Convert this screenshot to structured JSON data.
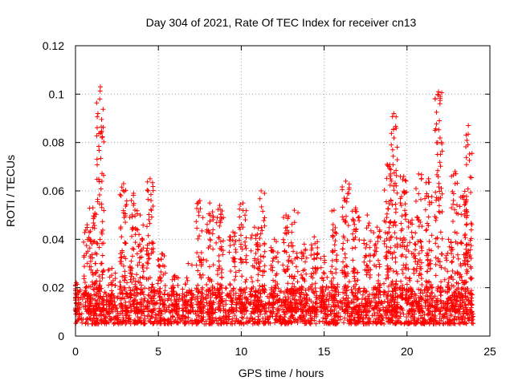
{
  "chart_data": {
    "type": "scatter",
    "title": "Day 304 of 2021, Rate Of TEC Index for receiver cn13",
    "xlabel": "GPS time / hours",
    "ylabel": "ROTI / TECUs",
    "xlim": [
      0,
      25
    ],
    "ylim": [
      0,
      0.12
    ],
    "x_ticks": [
      0,
      5,
      10,
      15,
      20,
      25
    ],
    "x_tick_labels": [
      "0",
      "5",
      "10",
      "15",
      "20",
      "25"
    ],
    "y_ticks": [
      0,
      0.02,
      0.04,
      0.06,
      0.08,
      0.1,
      0.12
    ],
    "y_tick_labels": [
      "0",
      "0.02",
      "0.04",
      "0.06",
      "0.08",
      "0.1",
      "0.12"
    ],
    "grid": true,
    "marker": "+",
    "series": [
      {
        "name": "ROTI",
        "color": "#ff0000",
        "baseline_range": [
          0.005,
          0.02
        ],
        "bursts": [
          {
            "t": 0.05,
            "max": 0.022
          },
          {
            "t": 0.7,
            "max": 0.046
          },
          {
            "t": 1.05,
            "max": 0.053
          },
          {
            "t": 1.5,
            "max": 0.103
          },
          {
            "t": 2.2,
            "max": 0.028
          },
          {
            "t": 2.9,
            "max": 0.063
          },
          {
            "t": 3.5,
            "max": 0.059
          },
          {
            "t": 3.9,
            "max": 0.05
          },
          {
            "t": 4.5,
            "max": 0.065
          },
          {
            "t": 5.2,
            "max": 0.034
          },
          {
            "t": 6.0,
            "max": 0.025
          },
          {
            "t": 6.8,
            "max": 0.03
          },
          {
            "t": 7.5,
            "max": 0.056
          },
          {
            "t": 8.1,
            "max": 0.055
          },
          {
            "t": 8.7,
            "max": 0.054
          },
          {
            "t": 9.5,
            "max": 0.043
          },
          {
            "t": 10.1,
            "max": 0.055
          },
          {
            "t": 10.8,
            "max": 0.045
          },
          {
            "t": 11.2,
            "max": 0.06
          },
          {
            "t": 12.0,
            "max": 0.04
          },
          {
            "t": 12.7,
            "max": 0.05
          },
          {
            "t": 13.2,
            "max": 0.052
          },
          {
            "t": 13.8,
            "max": 0.038
          },
          {
            "t": 14.4,
            "max": 0.041
          },
          {
            "t": 15.0,
            "max": 0.033
          },
          {
            "t": 15.6,
            "max": 0.052
          },
          {
            "t": 16.3,
            "max": 0.064
          },
          {
            "t": 16.9,
            "max": 0.053
          },
          {
            "t": 17.6,
            "max": 0.05
          },
          {
            "t": 18.2,
            "max": 0.045
          },
          {
            "t": 18.8,
            "max": 0.071
          },
          {
            "t": 19.2,
            "max": 0.092
          },
          {
            "t": 19.8,
            "max": 0.066
          },
          {
            "t": 20.3,
            "max": 0.048
          },
          {
            "t": 20.7,
            "max": 0.067
          },
          {
            "t": 21.3,
            "max": 0.065
          },
          {
            "t": 21.9,
            "max": 0.101
          },
          {
            "t": 22.5,
            "max": 0.04
          },
          {
            "t": 22.9,
            "max": 0.068
          },
          {
            "t": 23.4,
            "max": 0.058
          },
          {
            "t": 23.7,
            "max": 0.087
          }
        ]
      }
    ]
  }
}
